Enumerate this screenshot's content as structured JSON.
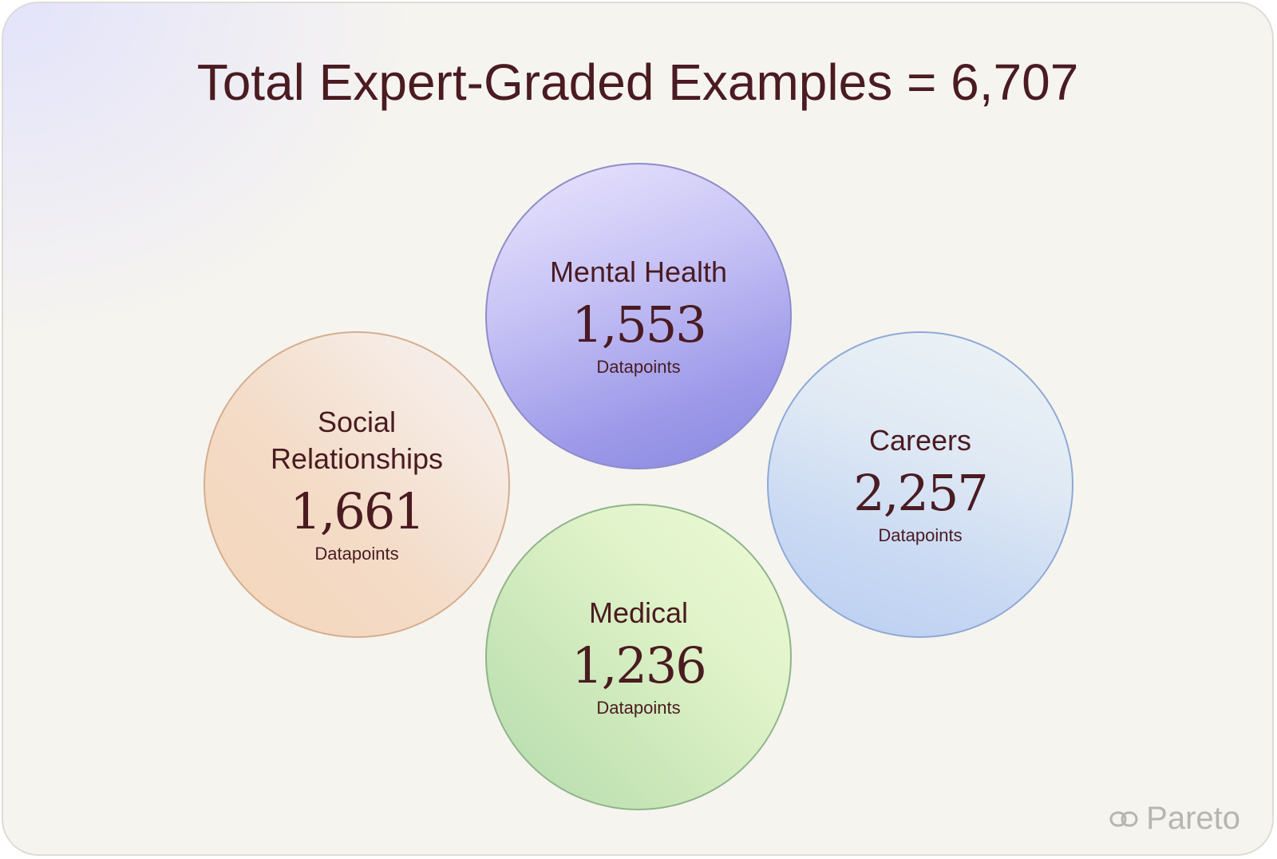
{
  "title": "Total Expert-Graded Examples = 6,707",
  "categories": [
    {
      "id": "mental",
      "label": "Mental Health",
      "count": "1,553",
      "unit": "Datapoints",
      "value": 1553
    },
    {
      "id": "social",
      "label": "Social Relationships",
      "count": "1,661",
      "unit": "Datapoints",
      "value": 1661
    },
    {
      "id": "careers",
      "label": "Careers",
      "count": "2,257",
      "unit": "Datapoints",
      "value": 2257
    },
    {
      "id": "medical",
      "label": "Medical",
      "count": "1,236",
      "unit": "Datapoints",
      "value": 1236
    }
  ],
  "brand": {
    "name": "Pareto",
    "icon": "infinity-link-icon",
    "color": "#b8b4ae"
  },
  "colors": {
    "text": "#4a1b21",
    "mental": "#9e9ae9",
    "social": "#f4d5b9",
    "careers": "#c9d9f3",
    "medical": "#c8e6b7"
  }
}
